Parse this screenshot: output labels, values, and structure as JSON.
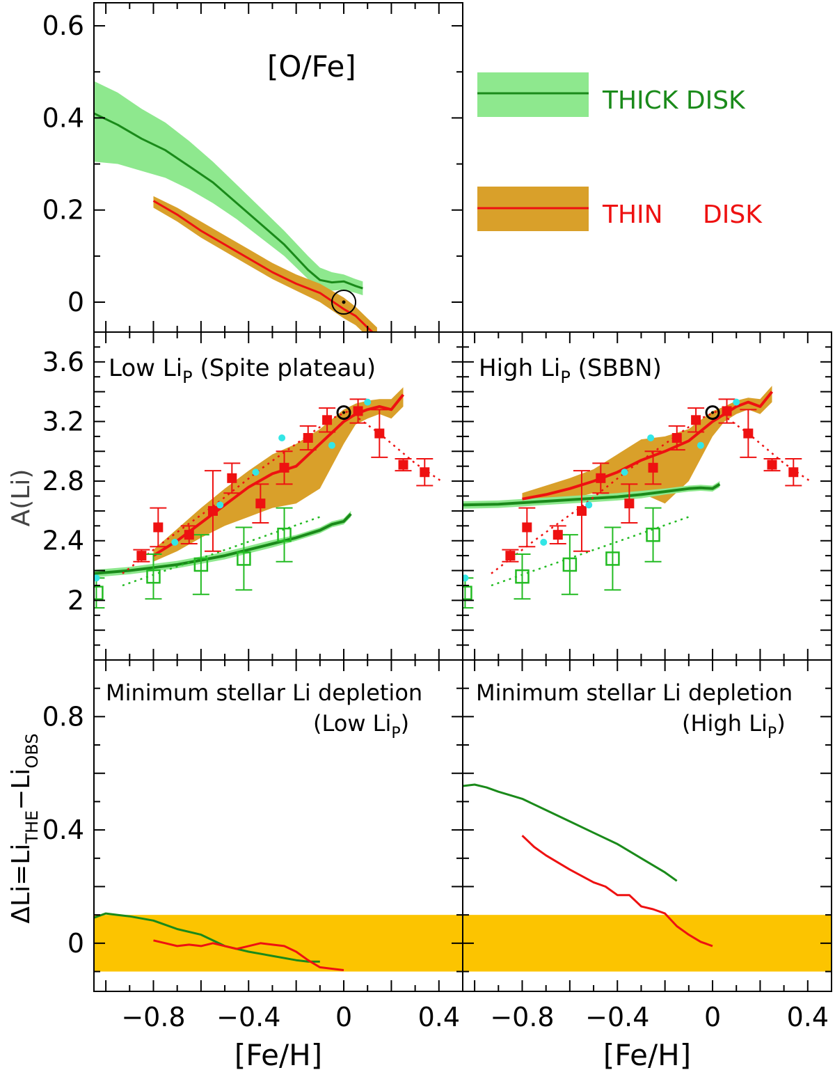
{
  "colors": {
    "thick_line": "#1a8a1a",
    "thick_band": "#8ee88e",
    "thin_line": "#ee1111",
    "thin_band": "#d9a02a",
    "data_square": "#ee1111",
    "data_cyan": "#33e6e6",
    "data_open": "#22bb22",
    "depletion_band": "#fcc400"
  },
  "legend": {
    "thick": "THICK DISK",
    "thin_a": "THIN",
    "thin_b": "DISK"
  },
  "chart_data": [
    {
      "id": "ofe",
      "type": "line",
      "title": "[O/Fe]",
      "xlabel": "",
      "ylabel": "",
      "xlim": [
        -1.05,
        0.5
      ],
      "ylim": [
        -0.065,
        0.65
      ],
      "yticks": [
        {
          "v": 0.6,
          "label": "0.6"
        },
        {
          "v": 0.4,
          "label": "0.4"
        },
        {
          "v": 0.2,
          "label": "0.2"
        },
        {
          "v": 0,
          "label": "0"
        }
      ],
      "sun": {
        "x": 0.0,
        "y": 0.0
      },
      "series": [
        {
          "name": "THICK DISK",
          "color": "thick_line",
          "band": "thick_band",
          "x": [
            -1.05,
            -0.95,
            -0.85,
            -0.75,
            -0.65,
            -0.55,
            -0.45,
            -0.35,
            -0.25,
            -0.15,
            -0.1,
            -0.05,
            0.0,
            0.05,
            0.08
          ],
          "y": [
            0.41,
            0.385,
            0.355,
            0.33,
            0.295,
            0.26,
            0.215,
            0.17,
            0.125,
            0.07,
            0.048,
            0.043,
            0.045,
            0.035,
            0.03
          ],
          "lo": [
            0.305,
            0.3,
            0.285,
            0.27,
            0.245,
            0.215,
            0.18,
            0.14,
            0.1,
            0.05,
            0.03,
            0.025,
            0.027,
            0.02,
            0.015
          ],
          "hi": [
            0.48,
            0.455,
            0.42,
            0.39,
            0.35,
            0.305,
            0.255,
            0.205,
            0.155,
            0.1,
            0.075,
            0.065,
            0.06,
            0.05,
            0.045
          ]
        },
        {
          "name": "THIN DISK",
          "color": "thin_line",
          "band": "thin_band",
          "x": [
            -0.8,
            -0.7,
            -0.6,
            -0.5,
            -0.4,
            -0.3,
            -0.2,
            -0.1,
            0.0,
            0.05,
            0.1,
            0.14
          ],
          "y": [
            0.22,
            0.19,
            0.155,
            0.125,
            0.095,
            0.065,
            0.04,
            0.02,
            -0.015,
            -0.03,
            -0.055,
            -0.075
          ],
          "lo": [
            0.205,
            0.175,
            0.14,
            0.11,
            0.08,
            0.05,
            0.025,
            0.0,
            -0.035,
            -0.05,
            -0.075,
            -0.095
          ],
          "hi": [
            0.23,
            0.205,
            0.175,
            0.145,
            0.115,
            0.085,
            0.06,
            0.04,
            0.01,
            -0.01,
            -0.035,
            -0.055
          ]
        }
      ]
    },
    {
      "id": "ali_low",
      "type": "line",
      "title": "Low Li",
      "title_sub": "P",
      "title_rest": " (Spite plateau)",
      "xlabel": "",
      "ylabel": "A(Li)",
      "xlim": [
        -1.05,
        0.5
      ],
      "ylim": [
        1.6,
        3.8
      ],
      "yticks": [
        {
          "v": 3.6,
          "label": "3.6"
        },
        {
          "v": 3.2,
          "label": "3.2"
        },
        {
          "v": 2.8,
          "label": "2.8"
        },
        {
          "v": 2.4,
          "label": "2.4"
        },
        {
          "v": 2.0,
          "label": "2"
        }
      ],
      "sun": {
        "x": 0.0,
        "y": 3.26
      },
      "series": [
        {
          "name": "thin disk model",
          "color": "thin_line",
          "band": "thin_band",
          "x": [
            -0.8,
            -0.7,
            -0.6,
            -0.5,
            -0.4,
            -0.3,
            -0.2,
            -0.1,
            0.0,
            0.05,
            0.1,
            0.15,
            0.2,
            0.25
          ],
          "y": [
            2.3,
            2.4,
            2.52,
            2.64,
            2.76,
            2.85,
            2.9,
            3.05,
            3.2,
            3.25,
            3.28,
            3.3,
            3.28,
            3.38
          ],
          "lo": [
            2.26,
            2.33,
            2.42,
            2.5,
            2.56,
            2.62,
            2.65,
            2.75,
            3.05,
            3.18,
            3.22,
            3.25,
            3.22,
            3.3
          ],
          "hi": [
            2.34,
            2.48,
            2.62,
            2.75,
            2.87,
            2.98,
            3.05,
            3.15,
            3.28,
            3.32,
            3.34,
            3.35,
            3.35,
            3.43
          ]
        },
        {
          "name": "thick disk model",
          "color": "thick_line",
          "band": "thick_band",
          "x": [
            -1.05,
            -0.9,
            -0.8,
            -0.7,
            -0.6,
            -0.5,
            -0.4,
            -0.3,
            -0.2,
            -0.1,
            -0.05,
            0.0,
            0.03
          ],
          "y": [
            2.18,
            2.2,
            2.22,
            2.24,
            2.27,
            2.3,
            2.34,
            2.38,
            2.42,
            2.47,
            2.51,
            2.53,
            2.58
          ],
          "lo": [
            2.155,
            2.175,
            2.195,
            2.215,
            2.245,
            2.275,
            2.315,
            2.355,
            2.4,
            2.45,
            2.49,
            2.51,
            2.56
          ],
          "hi": [
            2.205,
            2.225,
            2.245,
            2.265,
            2.295,
            2.325,
            2.365,
            2.405,
            2.44,
            2.49,
            2.53,
            2.55,
            2.6
          ]
        }
      ]
    },
    {
      "id": "ali_high",
      "type": "line",
      "title": "High Li",
      "title_sub": "P",
      "title_rest": " (SBBN)",
      "xlabel": "",
      "ylabel": "",
      "xlim": [
        -1.05,
        0.5
      ],
      "ylim": [
        1.6,
        3.8
      ],
      "sun": {
        "x": 0.0,
        "y": 3.26
      },
      "series": [
        {
          "name": "thin disk model",
          "color": "thin_line",
          "band": "thin_band",
          "x": [
            -0.8,
            -0.7,
            -0.6,
            -0.5,
            -0.4,
            -0.3,
            -0.2,
            -0.1,
            0.0,
            0.05,
            0.1,
            0.15,
            0.2,
            0.25
          ],
          "y": [
            2.68,
            2.71,
            2.75,
            2.8,
            2.86,
            2.94,
            3.0,
            3.07,
            3.2,
            3.25,
            3.3,
            3.33,
            3.3,
            3.4
          ],
          "lo": [
            2.64,
            2.66,
            2.68,
            2.72,
            2.7,
            2.72,
            2.65,
            2.8,
            3.1,
            3.2,
            3.25,
            3.28,
            3.25,
            3.33
          ],
          "hi": [
            2.72,
            2.77,
            2.82,
            2.88,
            2.98,
            3.08,
            3.1,
            3.15,
            3.27,
            3.3,
            3.34,
            3.36,
            3.35,
            3.44
          ]
        },
        {
          "name": "thick disk model",
          "color": "thick_line",
          "band": "thick_band",
          "x": [
            -1.05,
            -0.9,
            -0.8,
            -0.7,
            -0.6,
            -0.5,
            -0.4,
            -0.3,
            -0.2,
            -0.1,
            -0.05,
            0.0,
            0.03
          ],
          "y": [
            2.64,
            2.645,
            2.655,
            2.665,
            2.675,
            2.685,
            2.695,
            2.71,
            2.73,
            2.75,
            2.755,
            2.75,
            2.78
          ],
          "lo": [
            2.615,
            2.62,
            2.63,
            2.64,
            2.65,
            2.66,
            2.67,
            2.685,
            2.71,
            2.73,
            2.735,
            2.73,
            2.76
          ],
          "hi": [
            2.665,
            2.67,
            2.68,
            2.69,
            2.7,
            2.71,
            2.72,
            2.735,
            2.75,
            2.77,
            2.775,
            2.77,
            2.8
          ]
        }
      ]
    },
    {
      "id": "dli_low",
      "type": "line",
      "title": "Minimum stellar Li depletion",
      "note": "(Low Li",
      "note_sub": "P",
      "note_end": ")",
      "xlabel": "[Fe/H]",
      "ylabel_main": "ΔLi=Li",
      "ylabel_sub1": "THE",
      "ylabel_mid": "−Li",
      "ylabel_sub2": "OBS",
      "xlim": [
        -1.05,
        0.5
      ],
      "ylim": [
        -0.17,
        1.0
      ],
      "band_range": [
        -0.1,
        0.1
      ],
      "xticks": [
        {
          "v": -0.8,
          "label": "−0.8"
        },
        {
          "v": -0.4,
          "label": "−0.4"
        },
        {
          "v": 0.0,
          "label": "0"
        },
        {
          "v": 0.4,
          "label": "0.4"
        }
      ],
      "yticks": [
        {
          "v": 0.8,
          "label": "0.8"
        },
        {
          "v": 0.4,
          "label": "0.4"
        },
        {
          "v": 0.0,
          "label": "0"
        }
      ],
      "series": [
        {
          "name": "thick disk",
          "color": "thick_line",
          "x": [
            -1.05,
            -1.0,
            -0.95,
            -0.9,
            -0.8,
            -0.7,
            -0.6,
            -0.5,
            -0.4,
            -0.3,
            -0.2,
            -0.15,
            -0.1
          ],
          "y": [
            0.09,
            0.105,
            0.1,
            0.095,
            0.08,
            0.05,
            0.03,
            -0.01,
            -0.03,
            -0.045,
            -0.06,
            -0.065,
            -0.065
          ]
        },
        {
          "name": "thin disk",
          "color": "thin_line",
          "x": [
            -0.8,
            -0.75,
            -0.7,
            -0.65,
            -0.6,
            -0.55,
            -0.5,
            -0.45,
            -0.4,
            -0.35,
            -0.3,
            -0.25,
            -0.2,
            -0.15,
            -0.1,
            -0.05,
            0.0
          ],
          "y": [
            0.01,
            0.0,
            -0.01,
            -0.005,
            -0.01,
            0.0,
            -0.01,
            -0.02,
            -0.01,
            0.0,
            -0.005,
            -0.01,
            -0.03,
            -0.06,
            -0.085,
            -0.09,
            -0.095
          ]
        }
      ]
    },
    {
      "id": "dli_high",
      "type": "line",
      "title": "Minimum stellar Li depletion",
      "note": "(High Li",
      "note_sub": "P",
      "note_end": ")",
      "xlabel": "[Fe/H]",
      "ylabel": "",
      "xlim": [
        -1.05,
        0.5
      ],
      "ylim": [
        -0.17,
        1.0
      ],
      "band_range": [
        -0.1,
        0.1
      ],
      "xticks": [
        {
          "v": -0.8,
          "label": "−0.8"
        },
        {
          "v": -0.4,
          "label": "−0.4"
        },
        {
          "v": 0.0,
          "label": "0"
        },
        {
          "v": 0.4,
          "label": "0.4"
        }
      ],
      "series": [
        {
          "name": "thick disk",
          "color": "thick_line",
          "x": [
            -1.05,
            -1.0,
            -0.95,
            -0.9,
            -0.8,
            -0.7,
            -0.6,
            -0.5,
            -0.4,
            -0.3,
            -0.2,
            -0.15
          ],
          "y": [
            0.555,
            0.56,
            0.55,
            0.535,
            0.51,
            0.47,
            0.43,
            0.39,
            0.35,
            0.3,
            0.25,
            0.22
          ]
        },
        {
          "name": "thin disk",
          "color": "thin_line",
          "x": [
            -0.8,
            -0.75,
            -0.7,
            -0.6,
            -0.5,
            -0.45,
            -0.4,
            -0.35,
            -0.3,
            -0.25,
            -0.2,
            -0.15,
            -0.1,
            -0.05,
            0.0
          ],
          "y": [
            0.38,
            0.34,
            0.31,
            0.26,
            0.215,
            0.2,
            0.17,
            0.17,
            0.13,
            0.12,
            0.105,
            0.06,
            0.03,
            0.005,
            -0.01
          ]
        }
      ]
    }
  ],
  "observations": {
    "thin_squares": [
      {
        "x": -0.85,
        "y": 2.3,
        "e": 0.04
      },
      {
        "x": -0.78,
        "y": 2.49,
        "e": 0.13
      },
      {
        "x": -0.65,
        "y": 2.44,
        "e": 0.06
      },
      {
        "x": -0.55,
        "y": 2.6,
        "e": 0.27
      },
      {
        "x": -0.47,
        "y": 2.82,
        "e": 0.1
      },
      {
        "x": -0.35,
        "y": 2.65,
        "e": 0.13
      },
      {
        "x": -0.25,
        "y": 2.89,
        "e": 0.11
      },
      {
        "x": -0.15,
        "y": 3.09,
        "e": 0.08
      },
      {
        "x": -0.07,
        "y": 3.21,
        "e": 0.08
      },
      {
        "x": 0.06,
        "y": 3.27,
        "e": 0.08
      },
      {
        "x": 0.15,
        "y": 3.12,
        "e": 0.16
      },
      {
        "x": 0.25,
        "y": 2.91,
        "e": 0.04
      },
      {
        "x": 0.34,
        "y": 2.86,
        "e": 0.09
      }
    ],
    "thin_trend_x": [
      -0.93,
      -0.75,
      -0.55,
      -0.35,
      -0.2,
      -0.05,
      0.02
    ],
    "thin_trend_y": [
      2.18,
      2.4,
      2.63,
      2.88,
      3.05,
      3.22,
      3.27
    ],
    "thin_falloff_x": [
      0.02,
      0.15,
      0.3,
      0.41
    ],
    "thin_falloff_y": [
      3.27,
      3.12,
      2.92,
      2.8
    ],
    "cyan_points": [
      {
        "x": -1.04,
        "y": 2.15
      },
      {
        "x": -0.71,
        "y": 2.39
      },
      {
        "x": -0.52,
        "y": 2.64
      },
      {
        "x": -0.37,
        "y": 2.86
      },
      {
        "x": -0.26,
        "y": 3.09
      },
      {
        "x": -0.05,
        "y": 3.04
      },
      {
        "x": 0.1,
        "y": 3.33
      }
    ],
    "thick_open": [
      {
        "x": -1.04,
        "y": 2.05,
        "e": 0.1
      },
      {
        "x": -0.8,
        "y": 2.16,
        "e": 0.15
      },
      {
        "x": -0.6,
        "y": 2.24,
        "e": 0.2
      },
      {
        "x": -0.42,
        "y": 2.28,
        "e": 0.21
      },
      {
        "x": -0.25,
        "y": 2.44,
        "e": 0.18
      }
    ],
    "thick_trend_x": [
      -0.93,
      -0.1
    ],
    "thick_trend_y": [
      2.1,
      2.56
    ]
  }
}
